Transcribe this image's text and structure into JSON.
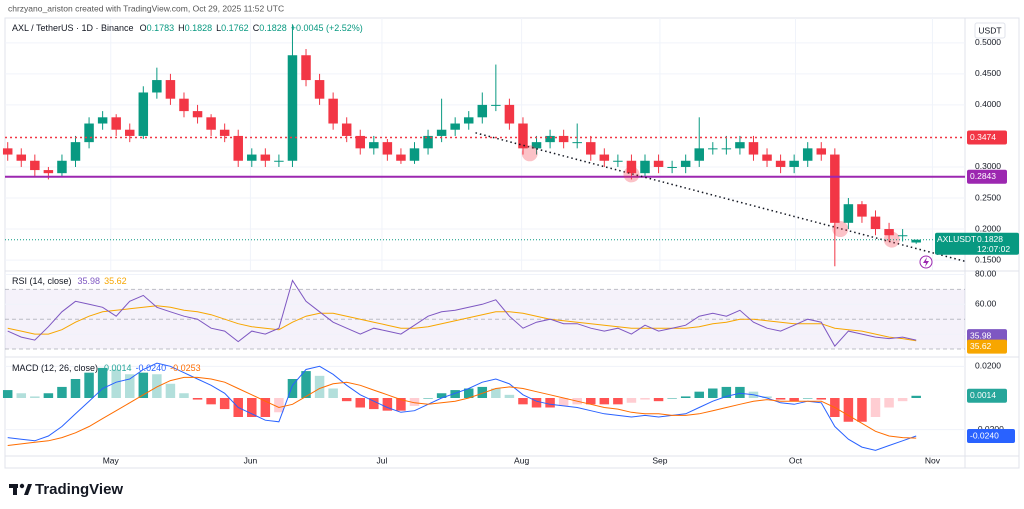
{
  "byline": "chrzyano_ariston created with TradingView.com, Oct 29, 2025 11:52 UTC",
  "logo": "TradingView",
  "chart_data": [
    {
      "type": "candlestick",
      "title": "AXL / TetherUS · 1D · Binance",
      "unit": "USDT",
      "symbol": "AXLUSDT",
      "countdown": "12:07:02",
      "change": "+0.0045 (+2.52%)",
      "ohlc_labels": [
        "O",
        "H",
        "L",
        "C"
      ],
      "up_color": "#089981",
      "down_color": "#f23645",
      "candles": [
        [
          0.33,
          0.34,
          0.31,
          0.32
        ],
        [
          0.32,
          0.33,
          0.3,
          0.31
        ],
        [
          0.31,
          0.32,
          0.285,
          0.295
        ],
        [
          0.295,
          0.3,
          0.28,
          0.29
        ],
        [
          0.29,
          0.32,
          0.285,
          0.31
        ],
        [
          0.31,
          0.35,
          0.3,
          0.34
        ],
        [
          0.34,
          0.38,
          0.33,
          0.37
        ],
        [
          0.37,
          0.39,
          0.36,
          0.38
        ],
        [
          0.38,
          0.385,
          0.35,
          0.36
        ],
        [
          0.36,
          0.37,
          0.34,
          0.35
        ],
        [
          0.35,
          0.43,
          0.345,
          0.42
        ],
        [
          0.42,
          0.46,
          0.41,
          0.44
        ],
        [
          0.44,
          0.45,
          0.4,
          0.41
        ],
        [
          0.41,
          0.42,
          0.38,
          0.39
        ],
        [
          0.39,
          0.4,
          0.37,
          0.38
        ],
        [
          0.38,
          0.385,
          0.35,
          0.36
        ],
        [
          0.36,
          0.37,
          0.34,
          0.35
        ],
        [
          0.35,
          0.36,
          0.3,
          0.31
        ],
        [
          0.31,
          0.33,
          0.3,
          0.32
        ],
        [
          0.32,
          0.33,
          0.3,
          0.31
        ],
        [
          0.31,
          0.32,
          0.3,
          0.31
        ],
        [
          0.31,
          0.53,
          0.3,
          0.48
        ],
        [
          0.48,
          0.49,
          0.43,
          0.44
        ],
        [
          0.44,
          0.45,
          0.4,
          0.41
        ],
        [
          0.41,
          0.42,
          0.36,
          0.37
        ],
        [
          0.37,
          0.38,
          0.34,
          0.35
        ],
        [
          0.35,
          0.36,
          0.32,
          0.33
        ],
        [
          0.33,
          0.35,
          0.32,
          0.34
        ],
        [
          0.34,
          0.345,
          0.31,
          0.32
        ],
        [
          0.32,
          0.33,
          0.305,
          0.31
        ],
        [
          0.31,
          0.34,
          0.305,
          0.33
        ],
        [
          0.33,
          0.36,
          0.32,
          0.35
        ],
        [
          0.35,
          0.41,
          0.34,
          0.36
        ],
        [
          0.36,
          0.38,
          0.35,
          0.37
        ],
        [
          0.37,
          0.39,
          0.36,
          0.38
        ],
        [
          0.38,
          0.42,
          0.37,
          0.4
        ],
        [
          0.4,
          0.465,
          0.39,
          0.4
        ],
        [
          0.4,
          0.41,
          0.36,
          0.37
        ],
        [
          0.37,
          0.38,
          0.32,
          0.33
        ],
        [
          0.33,
          0.35,
          0.32,
          0.34
        ],
        [
          0.34,
          0.36,
          0.33,
          0.35
        ],
        [
          0.35,
          0.36,
          0.33,
          0.34
        ],
        [
          0.34,
          0.37,
          0.33,
          0.34
        ],
        [
          0.34,
          0.35,
          0.31,
          0.32
        ],
        [
          0.32,
          0.33,
          0.3,
          0.31
        ],
        [
          0.31,
          0.32,
          0.3,
          0.31
        ],
        [
          0.31,
          0.32,
          0.28,
          0.29
        ],
        [
          0.29,
          0.32,
          0.285,
          0.31
        ],
        [
          0.31,
          0.32,
          0.29,
          0.3
        ],
        [
          0.3,
          0.31,
          0.29,
          0.3
        ],
        [
          0.3,
          0.32,
          0.29,
          0.31
        ],
        [
          0.31,
          0.38,
          0.3,
          0.33
        ],
        [
          0.33,
          0.34,
          0.32,
          0.33
        ],
        [
          0.33,
          0.35,
          0.32,
          0.33
        ],
        [
          0.33,
          0.35,
          0.32,
          0.34
        ],
        [
          0.34,
          0.35,
          0.31,
          0.32
        ],
        [
          0.32,
          0.33,
          0.3,
          0.31
        ],
        [
          0.31,
          0.32,
          0.29,
          0.3
        ],
        [
          0.3,
          0.32,
          0.29,
          0.31
        ],
        [
          0.31,
          0.34,
          0.3,
          0.33
        ],
        [
          0.33,
          0.34,
          0.31,
          0.32
        ],
        [
          0.32,
          0.33,
          0.14,
          0.21
        ],
        [
          0.21,
          0.25,
          0.2,
          0.24
        ],
        [
          0.24,
          0.245,
          0.21,
          0.22
        ],
        [
          0.22,
          0.23,
          0.19,
          0.2
        ],
        [
          0.2,
          0.21,
          0.18,
          0.19
        ],
        [
          0.19,
          0.2,
          0.18,
          0.19
        ],
        [
          0.1783,
          0.1828,
          0.1762,
          0.1828
        ]
      ],
      "xlim": [
        -0.2,
        70.6
      ],
      "xticks": [
        {
          "value": 7.6,
          "label": "May"
        },
        {
          "value": 17.9,
          "label": "Jun"
        },
        {
          "value": 27.6,
          "label": "Jul"
        },
        {
          "value": 37.9,
          "label": "Aug"
        },
        {
          "value": 48.1,
          "label": "Sep"
        },
        {
          "value": 58.1,
          "label": "Oct"
        },
        {
          "value": 68.2,
          "label": "Nov"
        }
      ],
      "ylim": [
        0.134,
        0.54
      ],
      "yticks": [
        {
          "value": 0.15,
          "label": "0.1500"
        },
        {
          "value": 0.2,
          "label": "0.2000"
        },
        {
          "value": 0.25,
          "label": "0.2500"
        },
        {
          "value": 0.3,
          "label": "0.3000"
        },
        {
          "value": 0.4,
          "label": "0.4000"
        },
        {
          "value": 0.45,
          "label": "0.4500"
        },
        {
          "value": 0.5,
          "label": "0.5000"
        }
      ],
      "grid": true,
      "levels": [
        {
          "value": 0.3474,
          "color": "#f23645",
          "style": "dotted"
        },
        {
          "value": 0.2843,
          "color": "#9c27b0",
          "style": "solid"
        }
      ],
      "trendline": {
        "x": [
          34.5,
          70.6
        ],
        "y": [
          0.355,
          0.148
        ],
        "color": "#131722"
      },
      "markers": {
        "x": [
          38.5,
          46,
          61.4,
          65.2
        ],
        "y": [
          0.322,
          0.288,
          0.2,
          0.183
        ],
        "color": "#f23645"
      }
    },
    {
      "type": "line",
      "title": "RSI (14, close)",
      "series": [
        {
          "color": "#7e57c2",
          "values": [
            42,
            38,
            36,
            45,
            55,
            62,
            60,
            58,
            52,
            62,
            66,
            58,
            55,
            52,
            50,
            44,
            42,
            35,
            42,
            40,
            44,
            76,
            62,
            55,
            48,
            44,
            40,
            44,
            42,
            40,
            46,
            52,
            55,
            56,
            58,
            60,
            63,
            52,
            44,
            48,
            50,
            47,
            47,
            44,
            42,
            44,
            40,
            46,
            42,
            44,
            46,
            52,
            54,
            52,
            56,
            48,
            44,
            42,
            46,
            50,
            48,
            32,
            42,
            40,
            38,
            37,
            38,
            35.98
          ]
        },
        {
          "color": "#f7a600",
          "values": [
            44,
            42,
            40,
            40,
            43,
            48,
            52,
            55,
            56,
            57,
            58,
            59,
            58,
            56,
            55,
            53,
            50,
            47,
            45,
            44,
            43,
            48,
            52,
            54,
            54,
            52,
            50,
            48,
            46,
            44,
            44,
            45,
            47,
            49,
            51,
            53,
            55,
            55,
            54,
            52,
            50,
            49,
            48,
            47,
            46,
            45,
            44,
            44,
            44,
            44,
            44,
            45,
            47,
            48,
            50,
            50,
            49,
            48,
            47,
            47,
            47,
            44,
            43,
            42,
            40,
            38,
            37,
            35.62
          ]
        }
      ],
      "band": [
        30,
        70
      ],
      "midline": 50,
      "band_color": "#7e57c2",
      "ylim": [
        26,
        81
      ],
      "yticks": [
        {
          "value": 40,
          "label": "40.00"
        },
        {
          "value": 60,
          "label": "60.00"
        },
        {
          "value": 80,
          "label": "80.00"
        }
      ]
    },
    {
      "type": "macd",
      "title": "MACD (12, 26, close)",
      "histogram": [
        0.005,
        0.003,
        0.001,
        0.003,
        0.007,
        0.012,
        0.016,
        0.019,
        0.018,
        0.015,
        0.016,
        0.015,
        0.009,
        0.003,
        -0.001,
        -0.004,
        -0.007,
        -0.012,
        -0.012,
        -0.012,
        -0.009,
        0.012,
        0.017,
        0.014,
        0.006,
        -0.002,
        -0.006,
        -0.007,
        -0.008,
        -0.008,
        -0.005,
        0.0,
        0.003,
        0.005,
        0.006,
        0.007,
        0.006,
        0.002,
        -0.004,
        -0.006,
        -0.006,
        -0.005,
        -0.004,
        -0.004,
        -0.004,
        -0.004,
        -0.003,
        -0.001,
        -0.002,
        0.0,
        0.001,
        0.004,
        0.006,
        0.007,
        0.007,
        0.004,
        0.001,
        -0.001,
        -0.002,
        0.0,
        -0.001,
        -0.012,
        -0.015,
        -0.015,
        -0.012,
        -0.006,
        -0.002,
        0.0014
      ],
      "histogram_colors": [
        "#26a69a",
        "#b2dfdb",
        "#ff5252",
        "#ffcdd2"
      ],
      "series": [
        {
          "color": "#2962ff",
          "values": [
            -0.025,
            -0.026,
            -0.027,
            -0.024,
            -0.018,
            -0.01,
            -0.002,
            0.006,
            0.01,
            0.012,
            0.018,
            0.022,
            0.02,
            0.016,
            0.012,
            0.008,
            0.003,
            -0.006,
            -0.01,
            -0.014,
            -0.015,
            0.008,
            0.018,
            0.02,
            0.015,
            0.008,
            0.002,
            -0.002,
            -0.006,
            -0.009,
            -0.008,
            -0.004,
            0.0,
            0.003,
            0.006,
            0.01,
            0.012,
            0.009,
            0.002,
            -0.002,
            -0.004,
            -0.005,
            -0.006,
            -0.008,
            -0.01,
            -0.011,
            -0.012,
            -0.011,
            -0.012,
            -0.011,
            -0.01,
            -0.006,
            -0.002,
            0.001,
            0.003,
            0.002,
            0.0,
            -0.003,
            -0.004,
            -0.002,
            -0.003,
            -0.018,
            -0.026,
            -0.031,
            -0.033,
            -0.03,
            -0.027,
            -0.024
          ],
          "value_labels": [
            null,
            null,
            null,
            null,
            null,
            null,
            null,
            null,
            null,
            null,
            null,
            null,
            null,
            null,
            null,
            null,
            null,
            null,
            null,
            null,
            null,
            null,
            null,
            null,
            null,
            null,
            null,
            null,
            null,
            null,
            null,
            null,
            null,
            null,
            null,
            null,
            null,
            null,
            null,
            null,
            null,
            null,
            null,
            null,
            null,
            null,
            null,
            null,
            null,
            null,
            null,
            null,
            null,
            null,
            null,
            null,
            null,
            null,
            null,
            null,
            null,
            null,
            null,
            null,
            null,
            null,
            null,
            "-0.0240"
          ]
        },
        {
          "color": "#ff6d00",
          "values": [
            -0.03,
            -0.029,
            -0.028,
            -0.027,
            -0.025,
            -0.022,
            -0.018,
            -0.013,
            -0.008,
            -0.003,
            0.002,
            0.007,
            0.011,
            0.013,
            0.013,
            0.012,
            0.01,
            0.006,
            0.002,
            -0.002,
            -0.006,
            -0.004,
            0.001,
            0.006,
            0.009,
            0.01,
            0.008,
            0.005,
            0.002,
            -0.001,
            -0.003,
            -0.004,
            -0.003,
            -0.002,
            0.0,
            0.003,
            0.006,
            0.007,
            0.006,
            0.004,
            0.002,
            0.0,
            -0.002,
            -0.004,
            -0.006,
            -0.007,
            -0.009,
            -0.01,
            -0.01,
            -0.011,
            -0.011,
            -0.01,
            -0.008,
            -0.006,
            -0.004,
            -0.002,
            -0.001,
            -0.002,
            -0.002,
            -0.002,
            -0.002,
            -0.006,
            -0.011,
            -0.016,
            -0.021,
            -0.024,
            -0.025,
            -0.0253
          ]
        }
      ],
      "ylim": [
        -0.036,
        0.024
      ],
      "yticks": [
        {
          "value": 0.02,
          "label": "0.0200"
        },
        {
          "value": -0.02,
          "label": "-0.0200"
        }
      ]
    }
  ]
}
